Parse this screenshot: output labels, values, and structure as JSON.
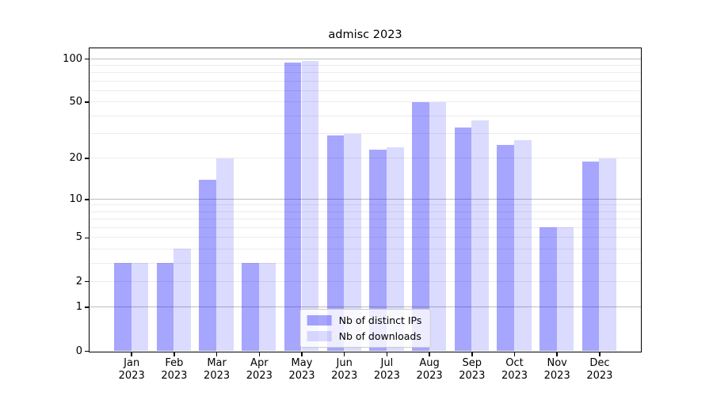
{
  "title": "admisc 2023",
  "colors": {
    "bar_distinct_ips": "rgba(0,0,255,0.35)",
    "bar_downloads": "rgba(0,0,255,0.14)",
    "grid_major": "#bdbdbd",
    "grid_minor": "#ececec",
    "spine": "#000000",
    "text": "#000000"
  },
  "legend": {
    "items": [
      {
        "label": "Nb of distinct IPs"
      },
      {
        "label": "Nb of downloads"
      }
    ]
  },
  "chart_data": {
    "type": "bar",
    "title": "admisc 2023",
    "xlabel": "",
    "ylabel": "",
    "yscale": "log1p",
    "ylim": [
      0,
      118
    ],
    "grid": true,
    "legend_position": "lower center",
    "categories": [
      "Jan",
      "Feb",
      "Mar",
      "Apr",
      "May",
      "Jun",
      "Jul",
      "Aug",
      "Sep",
      "Oct",
      "Nov",
      "Dec"
    ],
    "year": "2023",
    "series": [
      {
        "name": "Nb of distinct IPs",
        "values": [
          3,
          3,
          14,
          3,
          94,
          29,
          23,
          50,
          33,
          25,
          6,
          19
        ]
      },
      {
        "name": "Nb of downloads",
        "values": [
          3,
          4,
          20,
          3,
          96,
          30,
          24,
          50,
          37,
          27,
          6,
          20
        ]
      }
    ],
    "y_ticks": [
      0,
      1,
      2,
      5,
      10,
      20,
      50,
      100
    ],
    "y_tick_labels": [
      "0",
      "1",
      "2",
      "5",
      "10",
      "20",
      "50",
      "100"
    ],
    "major_gridlines": [
      1,
      10,
      100
    ],
    "minor_gridlines": [
      3,
      4,
      6,
      7,
      8,
      9,
      30,
      40,
      60,
      70,
      80,
      90
    ]
  }
}
